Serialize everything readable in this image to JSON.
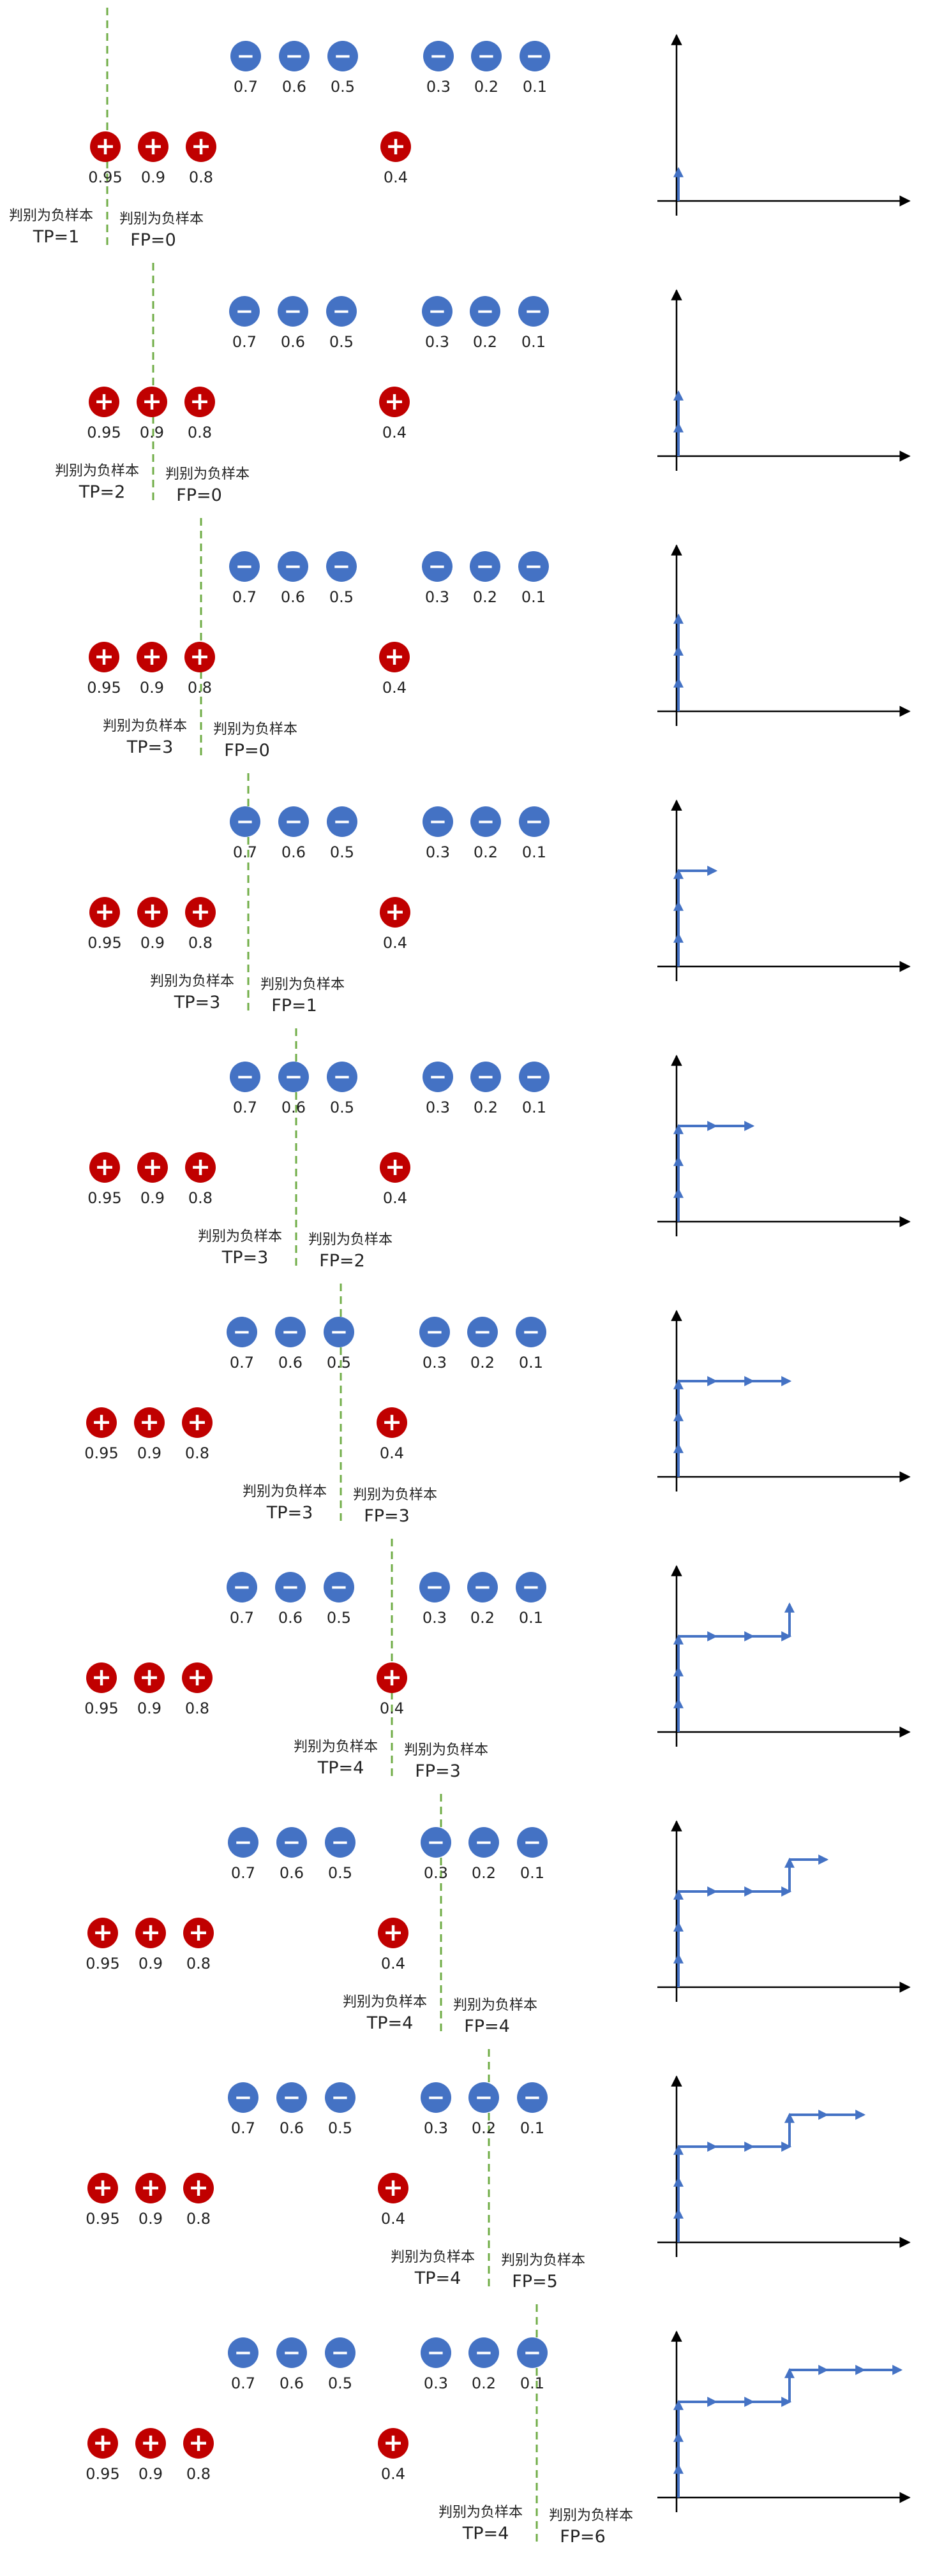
{
  "colors": {
    "positive": "#c00000",
    "negative": "#4472c4",
    "threshold_line": "#70ad47",
    "roc_step": "#4472c4",
    "axis": "#000000",
    "text": "#222222"
  },
  "symbols": {
    "positive": "+",
    "negative": "−"
  },
  "samples": {
    "negative_scores": [
      "0.7",
      "0.6",
      "0.5",
      "0.3",
      "0.2",
      "0.1"
    ],
    "positive_scores": [
      "0.95",
      "0.9",
      "0.8",
      "0.4"
    ]
  },
  "caption_label": "判别为负样本",
  "panels": [
    {
      "tp": "TP=1",
      "fp": "FP=0",
      "roc_steps": [
        "up"
      ]
    },
    {
      "tp": "TP=2",
      "fp": "FP=0",
      "roc_steps": [
        "up",
        "up"
      ]
    },
    {
      "tp": "TP=3",
      "fp": "FP=0",
      "roc_steps": [
        "up",
        "up",
        "up"
      ]
    },
    {
      "tp": "TP=3",
      "fp": "FP=1",
      "roc_steps": [
        "up",
        "up",
        "up",
        "right"
      ]
    },
    {
      "tp": "TP=3",
      "fp": "FP=2",
      "roc_steps": [
        "up",
        "up",
        "up",
        "right",
        "right"
      ]
    },
    {
      "tp": "TP=3",
      "fp": "FP=3",
      "roc_steps": [
        "up",
        "up",
        "up",
        "right",
        "right",
        "right"
      ]
    },
    {
      "tp": "TP=4",
      "fp": "FP=3",
      "roc_steps": [
        "up",
        "up",
        "up",
        "right",
        "right",
        "right",
        "up"
      ]
    },
    {
      "tp": "TP=4",
      "fp": "FP=4",
      "roc_steps": [
        "up",
        "up",
        "up",
        "right",
        "right",
        "right",
        "up",
        "right"
      ]
    },
    {
      "tp": "TP=4",
      "fp": "FP=5",
      "roc_steps": [
        "up",
        "up",
        "up",
        "right",
        "right",
        "right",
        "up",
        "right",
        "right"
      ]
    },
    {
      "tp": "TP=4",
      "fp": "FP=6",
      "roc_steps": [
        "up",
        "up",
        "up",
        "right",
        "right",
        "right",
        "up",
        "right",
        "right",
        "right"
      ]
    }
  ]
}
